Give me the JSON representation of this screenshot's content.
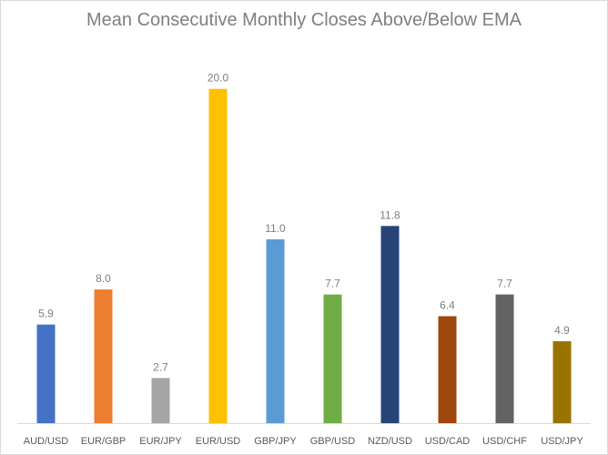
{
  "chart_data": {
    "type": "bar",
    "title": "Mean Consecutive Monthly Closes Above/Below EMA",
    "xlabel": "",
    "ylabel": "",
    "ylim": [
      0,
      22
    ],
    "grid": false,
    "legend": "none",
    "categories": [
      "AUD/USD",
      "EUR/GBP",
      "EUR/JPY",
      "EUR/USD",
      "GBP/JPY",
      "GBP/USD",
      "NZD/USD",
      "USD/CAD",
      "USD/CHF",
      "USD/JPY"
    ],
    "values": [
      5.9,
      8.0,
      2.7,
      20.0,
      11.0,
      7.7,
      11.8,
      6.4,
      7.7,
      4.9
    ],
    "data_labels": [
      "5.9",
      "8.0",
      "2.7",
      "20.0",
      "11.0",
      "7.7",
      "11.8",
      "6.4",
      "7.7",
      "4.9"
    ],
    "colors": [
      "#4472c4",
      "#ed7d31",
      "#a5a5a5",
      "#ffc000",
      "#5b9bd5",
      "#70ad47",
      "#264478",
      "#9e480e",
      "#636363",
      "#997300"
    ]
  }
}
